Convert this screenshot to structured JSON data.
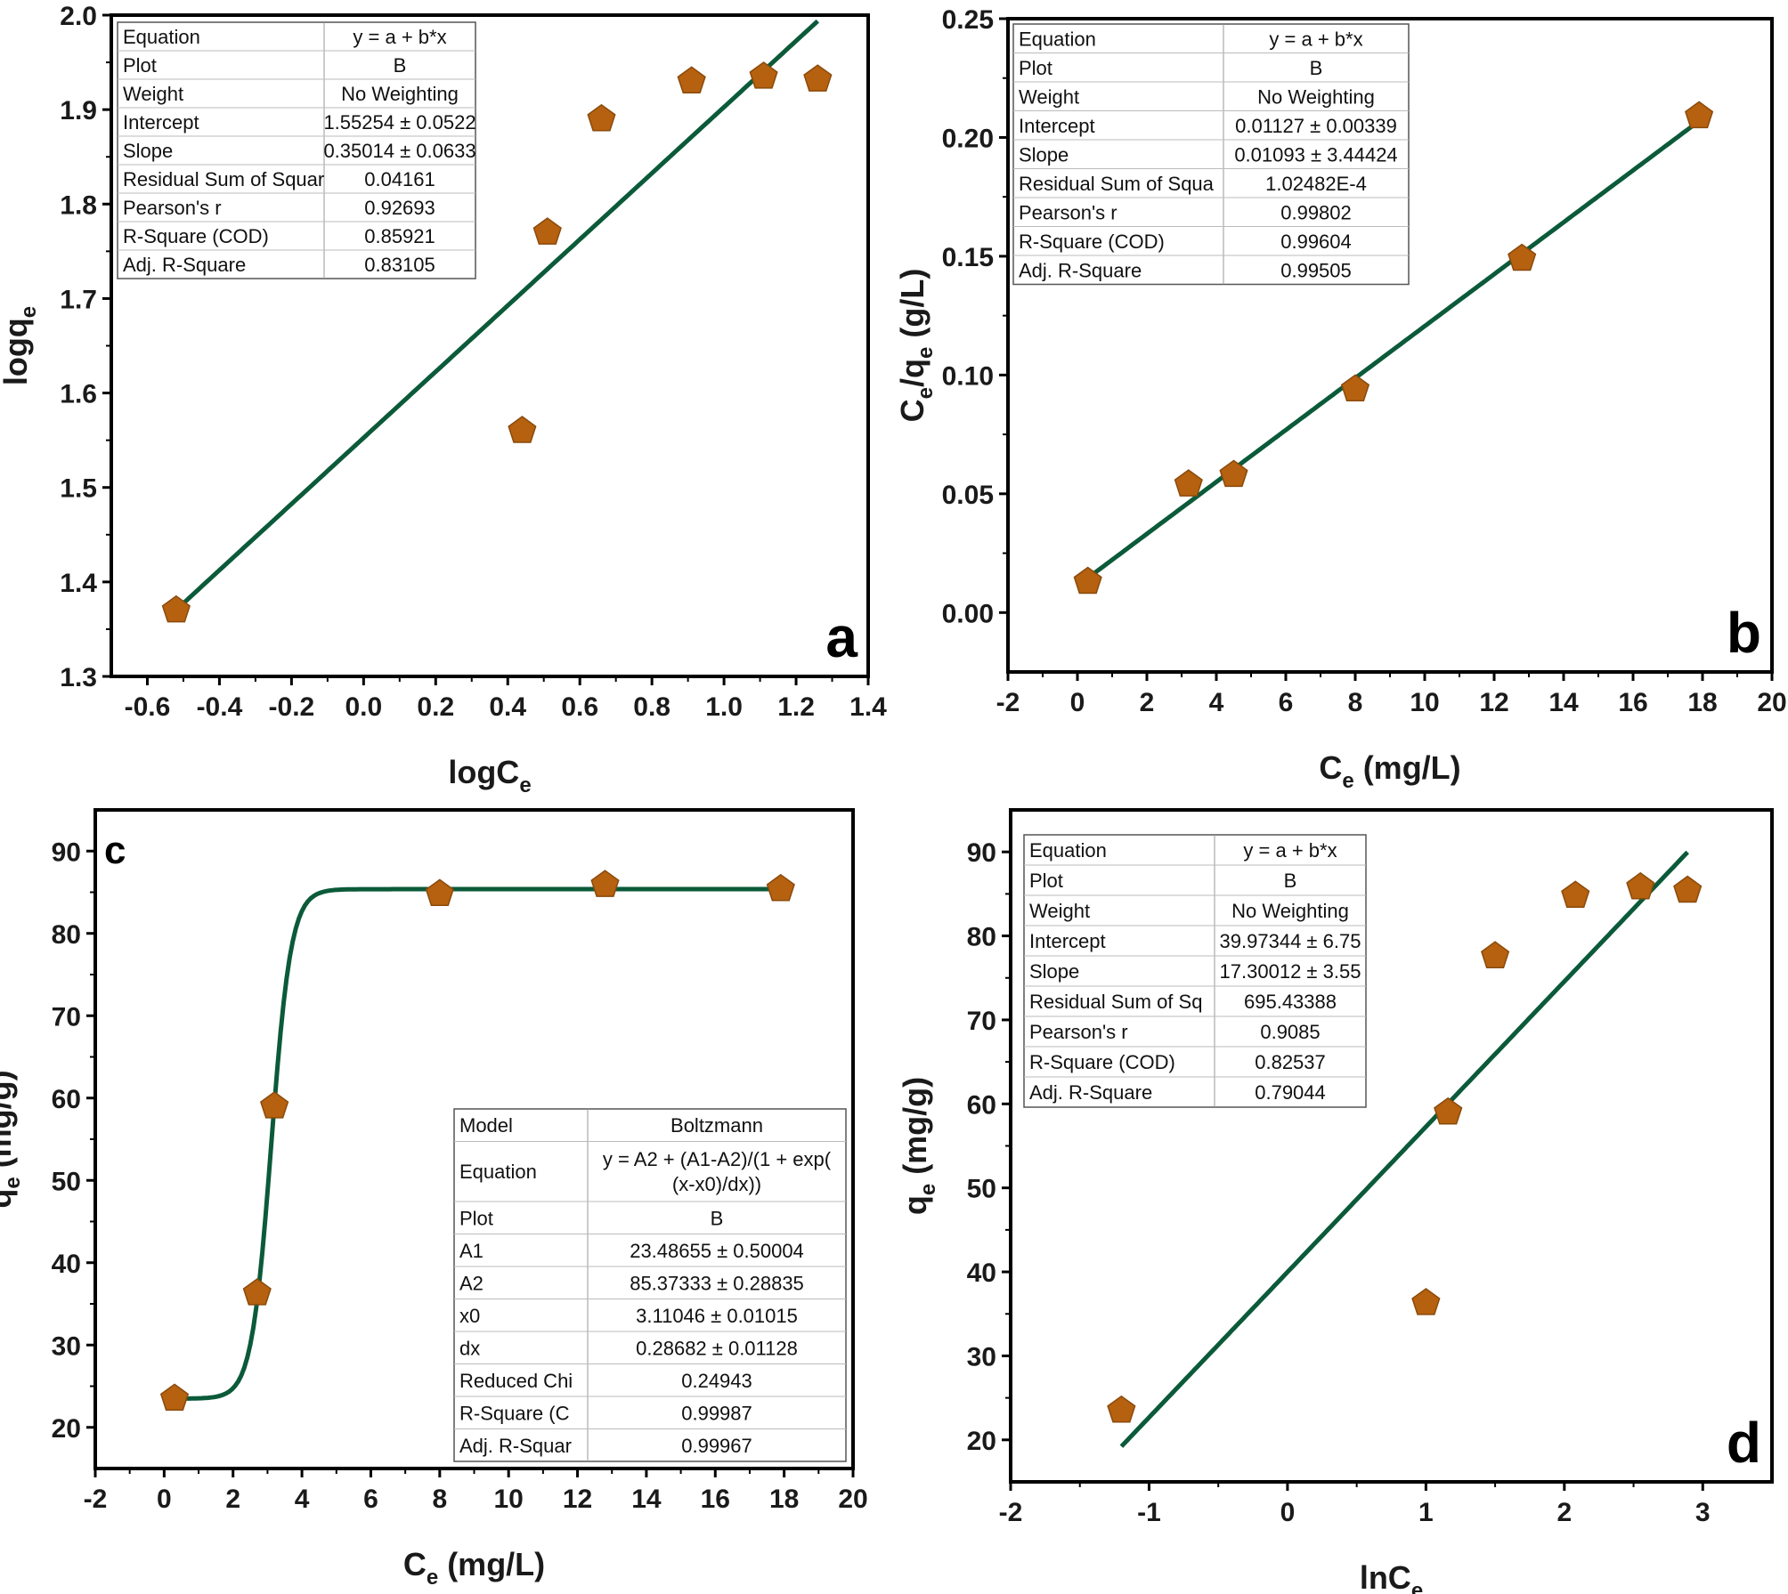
{
  "colors": {
    "marker": "#b5610f",
    "fit_line": "#0b5a3a",
    "frame": "#000000"
  },
  "chart_data": [
    {
      "id": "a",
      "type": "scatter",
      "panel_label": "a",
      "xlabel": "logC",
      "xlabel_sub": "e",
      "ylabel": "logq",
      "ylabel_sub": "e",
      "xlim": [
        -0.7,
        1.4
      ],
      "ylim": [
        1.3,
        2.0
      ],
      "xticks": [
        -0.6,
        -0.4,
        -0.2,
        0.0,
        0.2,
        0.4,
        0.6,
        0.8,
        1.0,
        1.2,
        1.4
      ],
      "xtick_labels": [
        "-0.6",
        "-0.4",
        "-0.2",
        "0.0",
        "0.2",
        "0.4",
        "0.6",
        "0.8",
        "1.0",
        "1.2",
        "1.4"
      ],
      "yticks": [
        1.3,
        1.4,
        1.5,
        1.6,
        1.7,
        1.8,
        1.9,
        2.0
      ],
      "ytick_labels": [
        "1.3",
        "1.4",
        "1.5",
        "1.6",
        "1.7",
        "1.8",
        "1.9",
        "2.0"
      ],
      "points": {
        "x": [
          -0.52,
          0.44,
          0.51,
          0.66,
          0.91,
          1.11,
          1.26
        ],
        "y": [
          1.37,
          1.56,
          1.77,
          1.89,
          1.93,
          1.935,
          1.932
        ]
      },
      "fit": {
        "kind": "linear",
        "x_range": [
          -0.52,
          1.26
        ],
        "intercept": 1.55254,
        "slope": 0.35014
      },
      "table": {
        "position": "top-left",
        "rows": [
          [
            "Equation",
            "y = a + b*x"
          ],
          [
            "Plot",
            "B"
          ],
          [
            "Weight",
            "No Weighting"
          ],
          [
            "Intercept",
            "1.55254 ± 0.0522"
          ],
          [
            "Slope",
            "0.35014 ± 0.0633"
          ],
          [
            "Residual Sum of Squar",
            "0.04161"
          ],
          [
            "Pearson's r",
            "0.92693"
          ],
          [
            "R-Square (COD)",
            "0.85921"
          ],
          [
            "Adj. R-Square",
            "0.83105"
          ]
        ]
      }
    },
    {
      "id": "b",
      "type": "scatter",
      "panel_label": "b",
      "xlabel": "C",
      "xlabel_sub": "e",
      "xlabel_suffix": " (mg/L)",
      "ylabel": "C",
      "ylabel_sub": "e",
      "ylabel_mid": "/q",
      "ylabel_sub2": "e",
      "ylabel_suffix": " (g/L)",
      "xlim": [
        -2,
        20
      ],
      "ylim": [
        -0.025,
        0.25
      ],
      "xticks": [
        -2,
        0,
        2,
        4,
        6,
        8,
        10,
        12,
        14,
        16,
        18,
        20
      ],
      "xtick_labels": [
        "-2",
        "0",
        "2",
        "4",
        "6",
        "8",
        "10",
        "12",
        "14",
        "16",
        "18",
        "20"
      ],
      "yticks": [
        0.0,
        0.05,
        0.1,
        0.15,
        0.2,
        0.25
      ],
      "ytick_labels": [
        "0.00",
        "0.05",
        "0.10",
        "0.15",
        "0.20",
        "0.25"
      ],
      "points": {
        "x": [
          0.3,
          3.2,
          4.5,
          8.0,
          12.8,
          17.9
        ],
        "y": [
          0.013,
          0.054,
          0.058,
          0.094,
          0.149,
          0.209
        ]
      },
      "fit": {
        "kind": "linear",
        "x_range": [
          0.3,
          17.9
        ],
        "intercept": 0.01127,
        "slope": 0.01093
      },
      "table": {
        "position": "top-left",
        "rows": [
          [
            "Equation",
            "y = a + b*x"
          ],
          [
            "Plot",
            "B"
          ],
          [
            "Weight",
            "No Weighting"
          ],
          [
            "Intercept",
            "0.01127 ± 0.00339"
          ],
          [
            "Slope",
            "0.01093 ± 3.44424"
          ],
          [
            "Residual Sum of Squa",
            "1.02482E-4"
          ],
          [
            "Pearson's r",
            "0.99802"
          ],
          [
            "R-Square (COD)",
            "0.99604"
          ],
          [
            "Adj. R-Square",
            "0.99505"
          ]
        ]
      }
    },
    {
      "id": "c",
      "type": "scatter",
      "panel_label": "c",
      "xlabel": "C",
      "xlabel_sub": "e",
      "xlabel_suffix": " (mg/L)",
      "ylabel": "q",
      "ylabel_sub": "e",
      "ylabel_suffix": " (mg/g)",
      "xlim": [
        -2,
        20
      ],
      "ylim": [
        15,
        95
      ],
      "xticks": [
        -2,
        0,
        2,
        4,
        6,
        8,
        10,
        12,
        14,
        16,
        18,
        20
      ],
      "xtick_labels": [
        "-2",
        "0",
        "2",
        "4",
        "6",
        "8",
        "10",
        "12",
        "14",
        "16",
        "18",
        "20"
      ],
      "yticks": [
        20,
        30,
        40,
        50,
        60,
        70,
        80,
        90
      ],
      "ytick_labels": [
        "20",
        "30",
        "40",
        "50",
        "60",
        "70",
        "80",
        "90"
      ],
      "points": {
        "x": [
          0.3,
          2.7,
          3.2,
          8.0,
          12.8,
          17.9
        ],
        "y": [
          23.5,
          36.3,
          59.0,
          84.8,
          85.9,
          85.4
        ]
      },
      "fit": {
        "kind": "boltzmann",
        "x_range": [
          0.3,
          17.9
        ],
        "A1": 23.48655,
        "A2": 85.37333,
        "x0": 3.11046,
        "dx": 0.28682
      },
      "table": {
        "position": "bottom-right",
        "rows": [
          [
            "Model",
            "Boltzmann"
          ],
          [
            "Equation",
            "y = A2 + (A1-A2)/(1 + exp(|(x-x0)/dx))"
          ],
          [
            "Plot",
            "B"
          ],
          [
            "A1",
            "23.48655 ± 0.50004"
          ],
          [
            "A2",
            "85.37333 ± 0.28835"
          ],
          [
            "x0",
            "3.11046 ± 0.01015"
          ],
          [
            "dx",
            "0.28682 ± 0.01128"
          ],
          [
            "Reduced Chi",
            "0.24943"
          ],
          [
            "R-Square (C",
            "0.99987"
          ],
          [
            "Adj. R-Squar",
            "0.99967"
          ]
        ]
      }
    },
    {
      "id": "d",
      "type": "scatter",
      "panel_label": "d",
      "xlabel": "lnC",
      "xlabel_sub": "e",
      "ylabel": "q",
      "ylabel_sub": "e",
      "ylabel_suffix": " (mg/g)",
      "xlim": [
        -2,
        3.5
      ],
      "ylim": [
        15,
        95
      ],
      "xticks": [
        -2,
        -1,
        0,
        1,
        2,
        3
      ],
      "xtick_labels": [
        "-2",
        "-1",
        "0",
        "1",
        "2",
        "3"
      ],
      "yticks": [
        20,
        30,
        40,
        50,
        60,
        70,
        80,
        90
      ],
      "ytick_labels": [
        "20",
        "30",
        "40",
        "50",
        "60",
        "70",
        "80",
        "90"
      ],
      "points": {
        "x": [
          -1.2,
          1.0,
          1.16,
          1.5,
          2.08,
          2.55,
          2.89
        ],
        "y": [
          23.5,
          36.3,
          59.0,
          77.6,
          84.8,
          85.8,
          85.4
        ]
      },
      "fit": {
        "kind": "linear",
        "x_range": [
          -1.2,
          2.89
        ],
        "intercept": 39.97344,
        "slope": 17.30012
      },
      "table": {
        "position": "top-left",
        "rows": [
          [
            "Equation",
            "y = a + b*x"
          ],
          [
            "Plot",
            "B"
          ],
          [
            "Weight",
            "No Weighting"
          ],
          [
            "Intercept",
            "39.97344 ± 6.75"
          ],
          [
            "Slope",
            "17.30012 ± 3.55"
          ],
          [
            "Residual Sum of Sq",
            "695.43388"
          ],
          [
            "Pearson's r",
            "0.9085"
          ],
          [
            "R-Square (COD)",
            "0.82537"
          ],
          [
            "Adj. R-Square",
            "0.79044"
          ]
        ]
      }
    }
  ]
}
